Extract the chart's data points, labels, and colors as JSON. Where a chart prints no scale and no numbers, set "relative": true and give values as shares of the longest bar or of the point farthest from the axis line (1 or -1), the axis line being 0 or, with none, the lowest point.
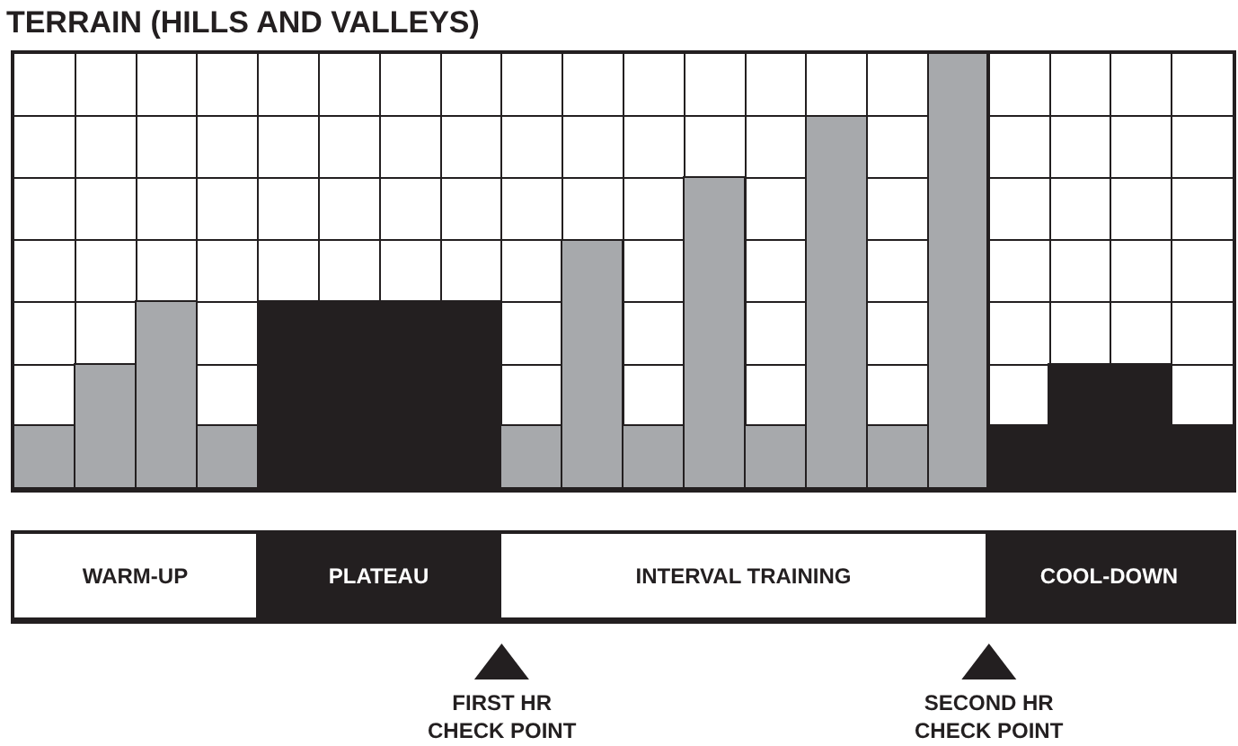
{
  "chart_data": [
    {
      "type": "bar",
      "title": "TERRAIN (HILLS AND VALLEYS)",
      "relative": true,
      "categories": [
        null,
        null,
        null,
        null,
        null,
        null,
        null,
        null,
        null,
        null,
        null,
        null,
        null,
        null,
        null,
        null,
        null,
        null,
        null,
        null
      ],
      "values": [
        0.143,
        0.286,
        0.429,
        0.143,
        0.429,
        0.429,
        0.429,
        0.429,
        0.143,
        0.571,
        0.143,
        0.714,
        0.143,
        0.857,
        0.143,
        1,
        0.143,
        0.286,
        0.286,
        0.143
      ],
      "colors": [
        "#a7a9ac",
        "#a7a9ac",
        "#a7a9ac",
        "#a7a9ac",
        "#231f20",
        "#231f20",
        "#231f20",
        "#231f20",
        "#a7a9ac",
        "#a7a9ac",
        "#a7a9ac",
        "#a7a9ac",
        "#a7a9ac",
        "#a7a9ac",
        "#a7a9ac",
        "#a7a9ac",
        "#231f20",
        "#231f20",
        "#231f20",
        "#231f20"
      ],
      "grid": true
    },
    {
      "type": "bar",
      "orientation": "horizontal",
      "stacked": true,
      "relative": true,
      "categories": [
        null
      ],
      "series": [
        {
          "name": "WARM-UP",
          "color": "#ffffff",
          "values": [
            0.2
          ]
        },
        {
          "name": "PLATEAU",
          "color": "#231f20",
          "values": [
            0.2
          ]
        },
        {
          "name": "INTERVAL TRAINING",
          "color": "#ffffff",
          "values": [
            0.4
          ]
        },
        {
          "name": "COOL-DOWN",
          "color": "#231f20",
          "values": [
            0.2
          ]
        }
      ],
      "annotations": [
        "FIRST HR\nCHECK POINT",
        "SECOND HR\nCHECK POINT"
      ]
    }
  ]
}
